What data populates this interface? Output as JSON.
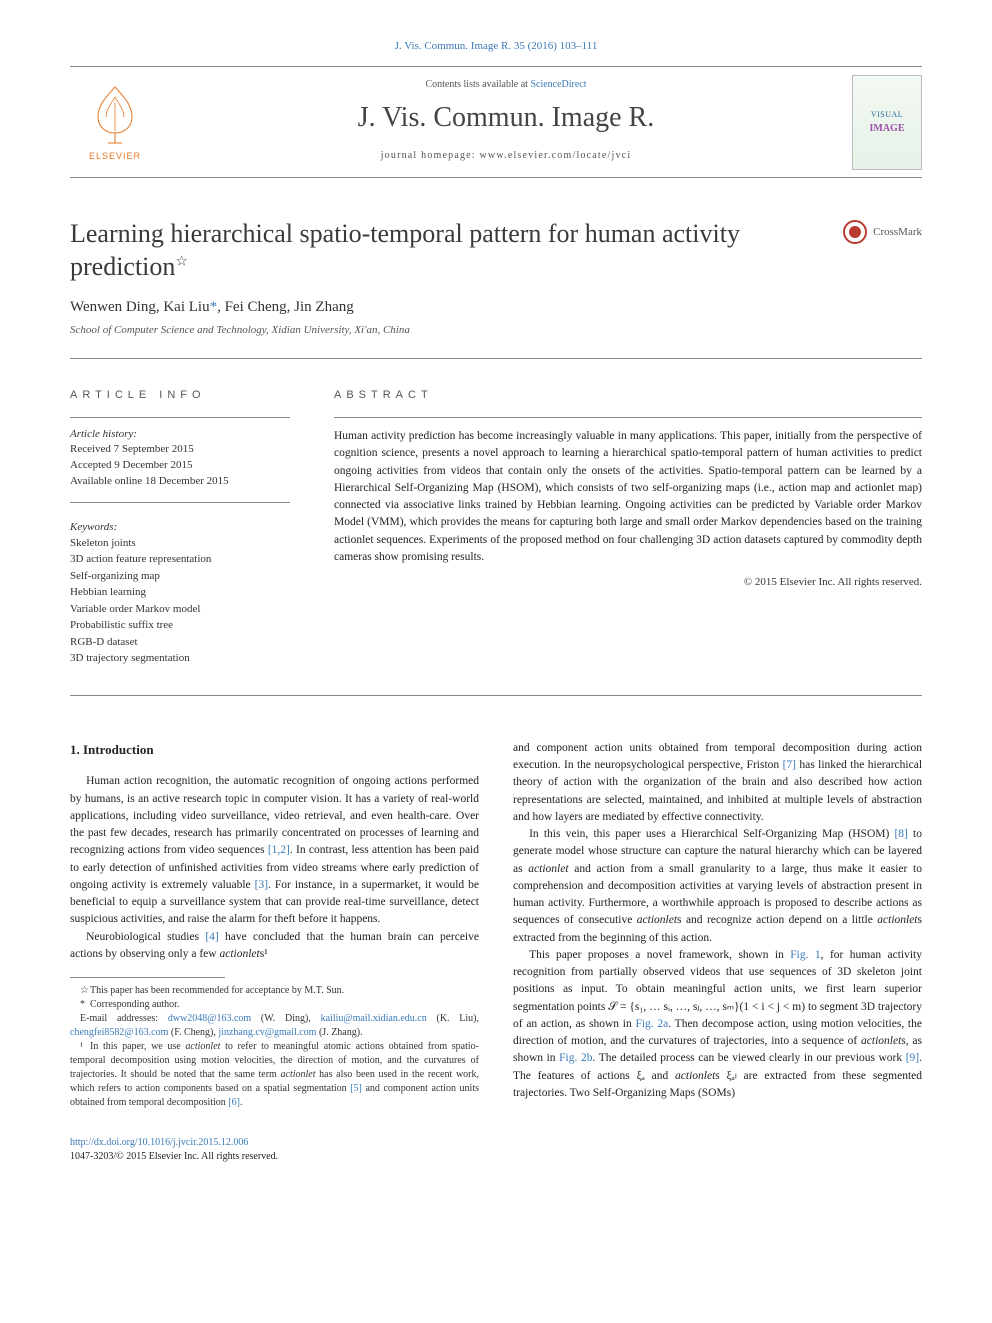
{
  "top_citation": "J. Vis. Commun. Image R. 35 (2016) 103–111",
  "header": {
    "contents_prefix": "Contents lists available at ",
    "contents_link": "ScienceDirect",
    "journal_title": "J. Vis. Commun. Image R.",
    "home_prefix": "journal homepage: ",
    "home_url": "www.elsevier.com/locate/jvci",
    "elsevier_label": "ELSEVIER",
    "cover_top": "VISUAL",
    "cover_mid": "IMAGE"
  },
  "crossmark_label": "CrossMark",
  "title": "Learning hierarchical spatio-temporal pattern for human activity prediction",
  "title_star": "☆",
  "authors_html": "Wenwen Ding, Kai Liu",
  "authors_rest": ", Fei Cheng, Jin Zhang",
  "corr_mark": "*",
  "affiliation": "School of Computer Science and Technology, Xidian University, Xi'an, China",
  "info": {
    "article_info_head": "ARTICLE INFO",
    "abstract_head": "ABSTRACT",
    "history_label": "Article history:",
    "history": [
      "Received 7 September 2015",
      "Accepted 9 December 2015",
      "Available online 18 December 2015"
    ],
    "keywords_label": "Keywords:",
    "keywords": [
      "Skeleton joints",
      "3D action feature representation",
      "Self-organizing map",
      "Hebbian learning",
      "Variable order Markov model",
      "Probabilistic suffix tree",
      "RGB-D dataset",
      "3D trajectory segmentation"
    ],
    "abstract": "Human activity prediction has become increasingly valuable in many applications. This paper, initially from the perspective of cognition science, presents a novel approach to learning a hierarchical spatio-temporal pattern of human activities to predict ongoing activities from videos that contain only the onsets of the activities. Spatio-temporal pattern can be learned by a Hierarchical Self-Organizing Map (HSOM), which consists of two self-organizing maps (i.e., action map and actionlet map) connected via associative links trained by Hebbian learning. Ongoing activities can be predicted by Variable order Markov Model (VMM), which provides the means for capturing both large and small order Markov dependencies based on the training actionlet sequences. Experiments of the proposed method on four challenging 3D action datasets captured by commodity depth cameras show promising results.",
    "copyright": "© 2015 Elsevier Inc. All rights reserved."
  },
  "section1_title": "1. Introduction",
  "body": {
    "left": [
      "Human action recognition, the automatic recognition of ongoing actions performed by humans, is an active research topic in computer vision. It has a variety of real-world applications, including video surveillance, video retrieval, and even health-care. Over the past few decades, research has primarily concentrated on processes of learning and recognizing actions from video sequences [1,2]. In contrast, less attention has been paid to early detection of unfinished activities from video streams where early prediction of ongoing activity is extremely valuable [3]. For instance, in a supermarket, it would be beneficial to equip a surveillance system that can provide real-time surveillance, detect suspicious activities, and raise the alarm for theft before it happens.",
      "Neurobiological studies [4] have concluded that the human brain can perceive actions by observing only a few actionlets¹"
    ],
    "right": [
      "and component action units obtained from temporal decomposition during action execution. In the neuropsychological perspective, Friston [7] has linked the hierarchical theory of action with the organization of the brain and also described how action representations are selected, maintained, and inhibited at multiple levels of abstraction and how layers are mediated by effective connectivity.",
      "In this vein, this paper uses a Hierarchical Self-Organizing Map (HSOM) [8] to generate model whose structure can capture the natural hierarchy which can be layered as actionlet and action from a small granularity to a large, thus make it easier to comprehension and decomposition activities at varying levels of abstraction present in human activity. Furthermore, a worthwhile approach is proposed to describe actions as sequences of consecutive actionlets and recognize action depend on a little actionlets extracted from the beginning of this action.",
      "This paper proposes a novel framework, shown in Fig. 1, for human activity recognition from partially observed videos that use sequences of 3D skeleton joint positions as input. To obtain meaningful action units, we first learn superior segmentation points  𝒮 = {s₁, … sᵢ, …, sⱼ, …, sₘ}(1 < i < j < m)  to segment 3D trajectory of an action, as shown in Fig. 2a. Then decompose action, using motion velocities, the direction of motion, and the curvatures of trajectories, into a sequence of actionlets, as shown in Fig. 2b. The detailed process can be viewed clearly in our previous work [9]. The features of actions ξₐ and actionlets ξₐₗ are extracted from these segmented trajectories. Two Self-Organizing Maps (SOMs)"
    ]
  },
  "footnotes": {
    "star": "This paper has been recommended for acceptance by M.T. Sun.",
    "corr": "Corresponding author.",
    "emails_label": "E-mail addresses: ",
    "emails": [
      {
        "addr": "dww2048@163.com",
        "who": " (W. Ding), "
      },
      {
        "addr": "kailiu@mail.xidian.edu.cn",
        "who": " (K. Liu), "
      },
      {
        "addr": "chengfei8582@163.com",
        "who": " (F. Cheng), "
      },
      {
        "addr": "jinzhang.cv@gmail.com",
        "who": " (J. Zhang)."
      }
    ],
    "fn1": "In this paper, we use actionlet to refer to meaningful atomic actions obtained from spatio-temporal decomposition using motion velocities, the direction of motion, and the curvatures of trajectories. It should be noted that the same term actionlet has also been used in the recent work, which refers to action components based on a spatial segmentation [5] and component action units obtained from temporal decomposition [6]."
  },
  "doi": {
    "url": "http://dx.doi.org/10.1016/j.jvcir.2015.12.006",
    "issn_line": "1047-3203/© 2015 Elsevier Inc. All rights reserved."
  },
  "colors": {
    "link": "#3a7ab8",
    "elsevier_orange": "#e67826",
    "rule": "#888888",
    "text": "#222222"
  }
}
